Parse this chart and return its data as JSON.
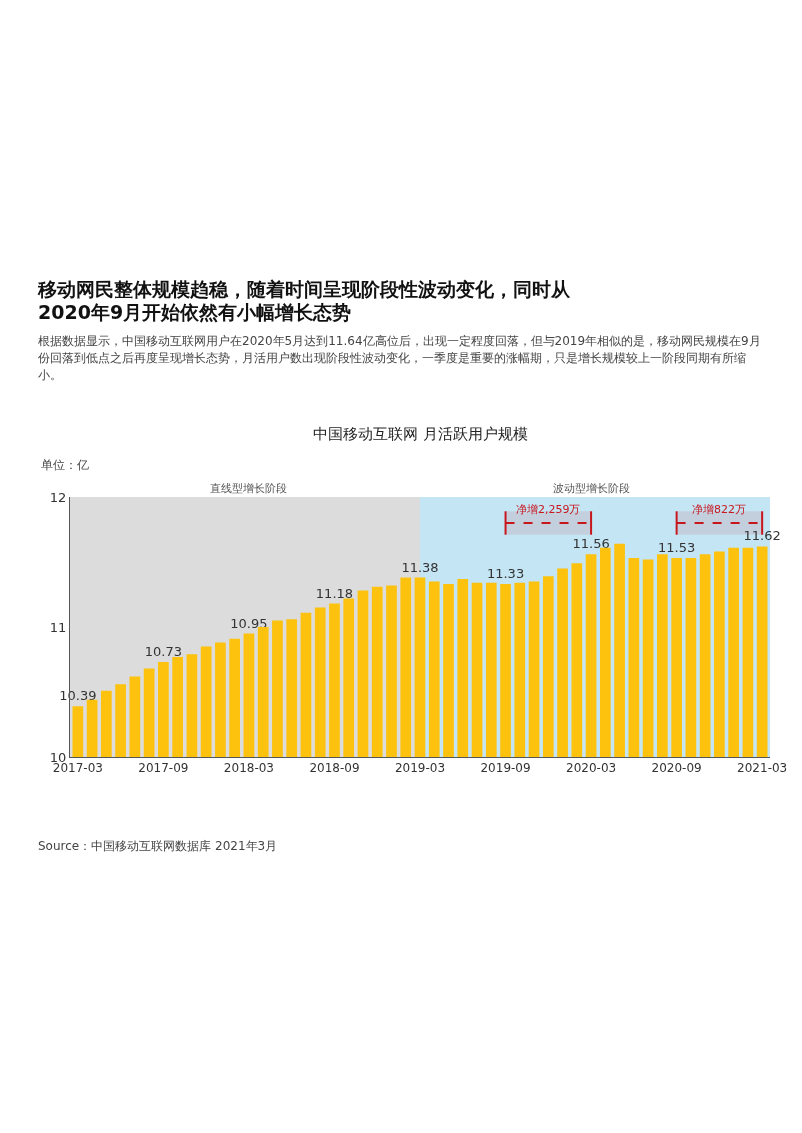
{
  "chart_data": {
    "type": "bar",
    "title": "移动网民整体规模趋稳，随着时间呈现阶段性波动变化，同时从2020年9月开始依然有小幅增长态势",
    "subtitle": "根据数据显示，中国移动互联网用户在2020年5月达到11.64亿高位后，出现一定程度回落，但与2019年相似的是，移动网民规模在9月份回落到低点之后再度呈现增长态势，月活用户数出现阶段性波动变化，一季度是重要的涨幅期，只是增长规模较上一阶段同期有所缩小。",
    "ylabel": "单位：亿",
    "annotations": [
      "中国移动互联网 月活跃用户规模",
      "Source：中国移动互联网数据库 2021年3月"
    ],
    "categories": [
      "2017-03",
      null,
      null,
      null,
      null,
      null,
      "2017-09",
      null,
      null,
      null,
      null,
      null,
      "2018-03",
      null,
      null,
      null,
      null,
      null,
      "2018-09",
      null,
      null,
      null,
      null,
      null,
      "2019-03",
      null,
      null,
      null,
      null,
      null,
      "2019-09",
      null,
      null,
      null,
      null,
      null,
      "2020-03",
      null,
      null,
      null,
      null,
      null,
      "2020-09",
      null,
      null,
      null,
      null,
      null,
      "2021-03"
    ],
    "values": [
      10.39,
      10.44,
      10.51,
      10.56,
      10.62,
      10.68,
      10.73,
      10.77,
      10.79,
      10.85,
      10.88,
      10.91,
      10.95,
      11.0,
      11.05,
      11.06,
      11.11,
      11.15,
      11.18,
      11.22,
      11.28,
      11.31,
      11.32,
      11.38,
      11.38,
      11.35,
      11.33,
      11.37,
      11.34,
      11.34,
      11.33,
      11.34,
      11.35,
      11.39,
      11.45,
      11.49,
      11.56,
      11.61,
      11.64,
      11.53,
      11.52,
      11.56,
      11.53,
      11.53,
      11.56,
      11.58,
      11.61,
      11.61,
      11.62
    ],
    "value_labels": [
      "10.39",
      null,
      null,
      null,
      null,
      null,
      "10.73",
      null,
      null,
      null,
      null,
      null,
      "10.95",
      null,
      null,
      null,
      null,
      null,
      "11.18",
      null,
      null,
      null,
      null,
      null,
      "11.38",
      null,
      null,
      null,
      null,
      null,
      "11.33",
      null,
      null,
      null,
      null,
      null,
      "11.56",
      null,
      null,
      null,
      null,
      null,
      "11.53",
      null,
      null,
      null,
      null,
      null,
      "11.62"
    ],
    "color": "#fcc20d",
    "ylim": [
      10,
      12
    ],
    "yticks": [
      10,
      11,
      12
    ],
    "grid": false,
    "bands": [
      {
        "axis": "x",
        "from": "2017-03",
        "to": "2019-03",
        "label": "直线型增长阶段",
        "color": "#dcdcdc"
      },
      {
        "axis": "x",
        "from": "2019-03",
        "to": "2021-03",
        "label": "波动型增长阶段",
        "color": "#c4e5f4"
      },
      {
        "axis": "x",
        "from": "2019-09",
        "to": "2020-03",
        "label": "净增2,259万",
        "color": "#c8161d"
      },
      {
        "axis": "x",
        "from": "2020-09",
        "to": "2021-03",
        "label": "净增822万",
        "color": "#c8161d"
      }
    ]
  }
}
